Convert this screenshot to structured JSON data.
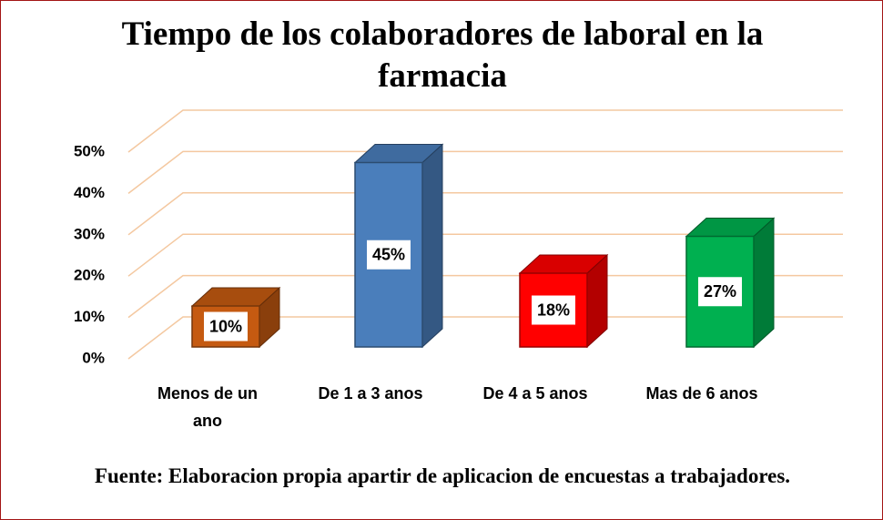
{
  "chart_data": {
    "type": "bar3d",
    "title": "Tiempo de los colaboradores de laboral en la farmacia",
    "caption": "Fuente: Elaboracion propia apartir de aplicacion de encuestas a trabajadores.",
    "categories": [
      "Menos de un ano",
      "De 1 a 3 anos",
      "De 4 a 5 anos",
      "Mas de 6 anos"
    ],
    "values": [
      10,
      45,
      18,
      27
    ],
    "value_labels": [
      "10%",
      "45%",
      "18%",
      "27%"
    ],
    "colors": [
      "#c55a11",
      "#4a7ebb",
      "#ff0000",
      "#00b050"
    ],
    "ylim": [
      0,
      50
    ],
    "yticks": [
      {
        "value": 0,
        "label": "0%"
      },
      {
        "value": 10,
        "label": "10%"
      },
      {
        "value": 20,
        "label": "20%"
      },
      {
        "value": 30,
        "label": "30%"
      },
      {
        "value": 40,
        "label": "40%"
      },
      {
        "value": 50,
        "label": "50%"
      }
    ],
    "grid": true
  }
}
